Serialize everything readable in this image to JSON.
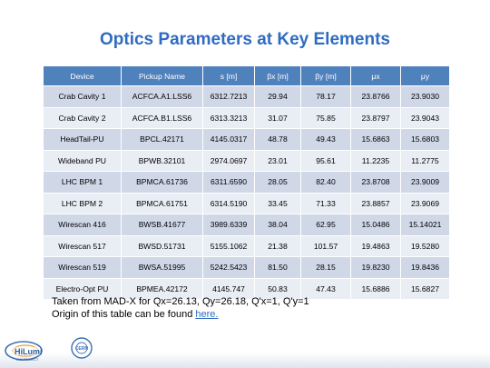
{
  "title": "Optics Parameters at Key Elements",
  "table": {
    "headers": [
      "Device",
      "Pickup Name",
      "s [m]",
      "βx [m]",
      "βy [m]",
      "μx",
      "μy"
    ],
    "rows": [
      [
        "Crab Cavity 1",
        "ACFCA.A1.LSS6",
        "6312.7213",
        "29.94",
        "78.17",
        "23.8766",
        "23.9030"
      ],
      [
        "Crab Cavity 2",
        "ACFCA.B1.LSS6",
        "6313.3213",
        "31.07",
        "75.85",
        "23.8797",
        "23.9043"
      ],
      [
        "HeadTail-PU",
        "BPCL.42171",
        "4145.0317",
        "48.78",
        "49.43",
        "15.6863",
        "15.6803"
      ],
      [
        "Wideband PU",
        "BPWB.32101",
        "2974.0697",
        "23.01",
        "95.61",
        "11.2235",
        "11.2775"
      ],
      [
        "LHC BPM 1",
        "BPMCA.61736",
        "6311.6590",
        "28.05",
        "82.40",
        "23.8708",
        "23.9009"
      ],
      [
        "LHC BPM 2",
        "BPMCA.61751",
        "6314.5190",
        "33.45",
        "71.33",
        "23.8857",
        "23.9069"
      ],
      [
        "Wirescan 416",
        "BWSB.41677",
        "3989.6339",
        "38.04",
        "62.95",
        "15.0486",
        "15.14021"
      ],
      [
        "Wirescan 517",
        "BWSD.51731",
        "5155.1062",
        "21.38",
        "101.57",
        "19.4863",
        "19.5280"
      ],
      [
        "Wirescan 519",
        "BWSA.51995",
        "5242.5423",
        "81.50",
        "28.15",
        "19.8230",
        "19.8436"
      ],
      [
        "Electro-Opt PU",
        "BPMEA.42172",
        "4145.747",
        "50.83",
        "47.43",
        "15.6886",
        "15.6827"
      ]
    ]
  },
  "note": {
    "line1": "Taken from MAD-X for Qx=26.13, Qy=26.18, Q'x=1, Q'y=1",
    "line2_prefix": "Origin of this table can be found ",
    "link_text": "here."
  },
  "logos": {
    "hilumi": "hilumi-logo",
    "cern": "cern-logo"
  },
  "colors": {
    "title": "#2f6cc1",
    "header_bg": "#4f81bd",
    "row_odd": "#d0d8e8",
    "row_even": "#e9edf4"
  }
}
